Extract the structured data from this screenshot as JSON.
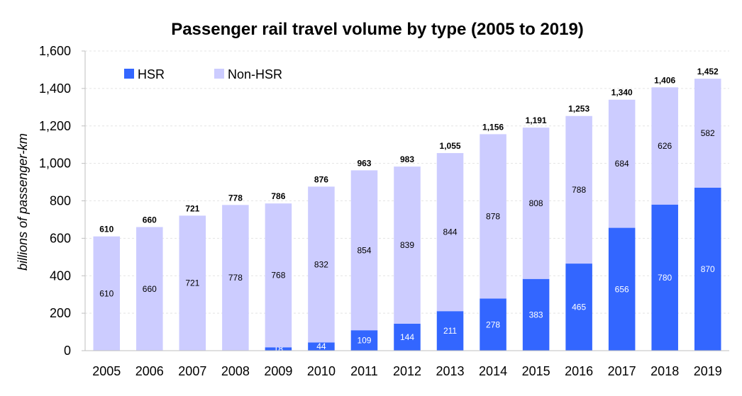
{
  "chart_data": {
    "type": "bar",
    "stacked": true,
    "title": "Passenger rail travel volume by type (2005 to 2019)",
    "xlabel": "",
    "ylabel": "billions of passenger-km",
    "ylim": [
      0,
      1600
    ],
    "yticks": [
      "0",
      "200",
      "400",
      "600",
      "800",
      "1,000",
      "1,200",
      "1,400",
      "1,600"
    ],
    "yticks_values": [
      0,
      200,
      400,
      600,
      800,
      1000,
      1200,
      1400,
      1600
    ],
    "grid": true,
    "legend_position": "top-left",
    "categories": [
      "2005",
      "2006",
      "2007",
      "2008",
      "2009",
      "2010",
      "2011",
      "2012",
      "2013",
      "2014",
      "2015",
      "2016",
      "2017",
      "2018",
      "2019"
    ],
    "series": [
      {
        "name": "HSR",
        "color": "#3366ff",
        "values": [
          0,
          0,
          0,
          0,
          18,
          44,
          109,
          144,
          211,
          278,
          383,
          465,
          656,
          780,
          870
        ],
        "labels": [
          "",
          "",
          "",
          "",
          "18",
          "44",
          "109",
          "144",
          "211",
          "278",
          "383",
          "465",
          "656",
          "780",
          "870"
        ]
      },
      {
        "name": "Non-HSR",
        "color": "#ccccff",
        "values": [
          610,
          660,
          721,
          778,
          768,
          832,
          854,
          839,
          844,
          878,
          808,
          788,
          684,
          626,
          582
        ],
        "labels": [
          "610",
          "660",
          "721",
          "778",
          "768",
          "832",
          "854",
          "839",
          "844",
          "878",
          "808",
          "788",
          "684",
          "626",
          "582"
        ]
      }
    ],
    "totals": [
      610,
      660,
      721,
      778,
      786,
      876,
      963,
      983,
      1055,
      1156,
      1191,
      1253,
      1340,
      1406,
      1452
    ],
    "totals_labels": [
      "610",
      "660",
      "721",
      "778",
      "786",
      "876",
      "963",
      "983",
      "1,055",
      "1,156",
      "1,191",
      "1,253",
      "1,340",
      "1,406",
      "1,452"
    ]
  }
}
